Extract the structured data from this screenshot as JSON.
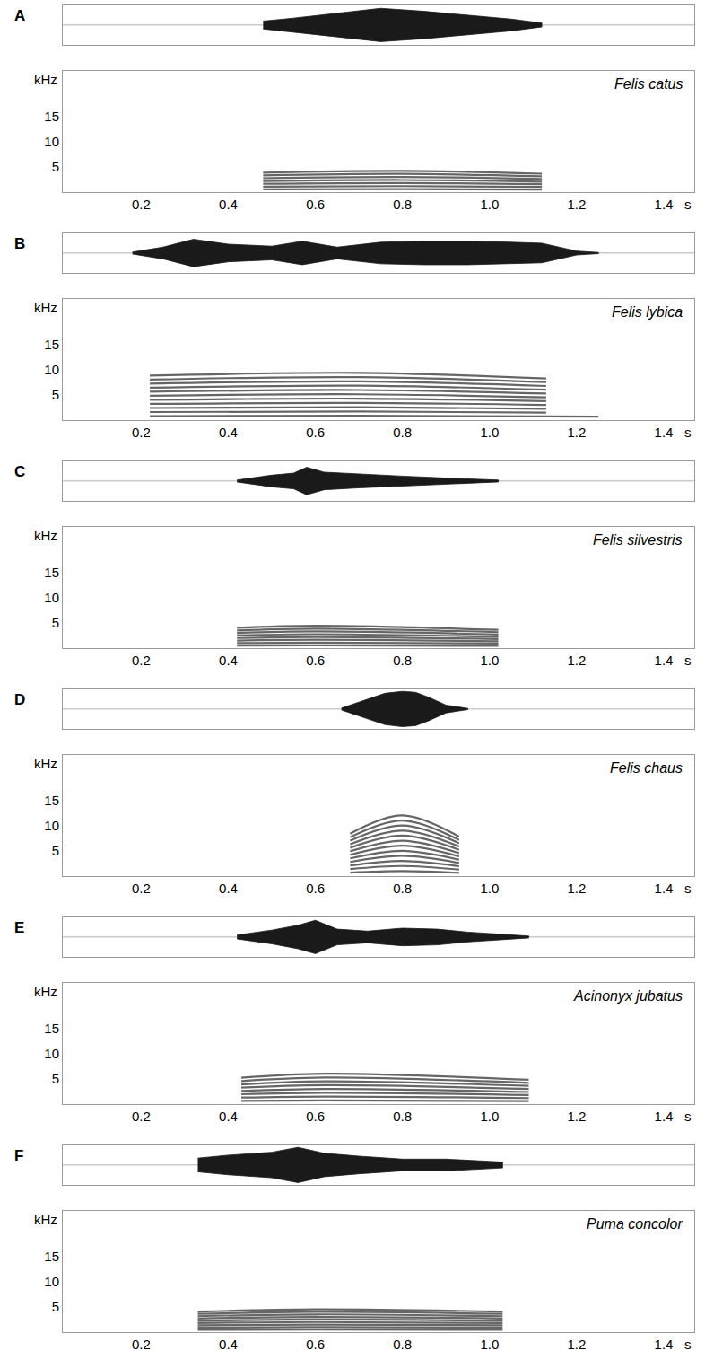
{
  "chart_data": [
    {
      "type": "line",
      "panel": "A",
      "title": "Felis catus",
      "x_label": "s",
      "y_label": "kHz",
      "xlim": [
        0.02,
        1.47
      ],
      "xticks": [
        0.2,
        0.4,
        0.6,
        0.8,
        {
          "value": 1,
          "label": "1.0"
        },
        1.2,
        1.4
      ],
      "ylim": [
        0,
        24
      ],
      "yticks": [
        5,
        10,
        15
      ],
      "color": "#333333",
      "waveform": {
        "type": "area",
        "color": "#1a1a1a",
        "ylim": [
          -1,
          1
        ],
        "tick_labels": false,
        "x": [
          0.48,
          0.55,
          0.65,
          0.75,
          0.85,
          0.95,
          1.05,
          1.12
        ],
        "values": [
          0.2,
          0.35,
          0.6,
          0.85,
          0.7,
          0.5,
          0.3,
          0.1
        ]
      },
      "series": [
        {
          "x": [
            0.48,
            0.8,
            1.12
          ],
          "values": [
            0.55,
            0.6,
            0.52
          ]
        },
        {
          "x": [
            0.48,
            0.8,
            1.12
          ],
          "values": [
            1.1,
            1.2,
            1.04
          ]
        },
        {
          "x": [
            0.48,
            0.8,
            1.12
          ],
          "values": [
            1.65,
            1.8,
            1.56
          ]
        },
        {
          "x": [
            0.48,
            0.8,
            1.12
          ],
          "values": [
            2.2,
            2.4,
            2.08
          ]
        },
        {
          "x": [
            0.48,
            0.8,
            1.12
          ],
          "values": [
            2.75,
            3.0,
            2.6
          ]
        },
        {
          "x": [
            0.48,
            0.8,
            1.12
          ],
          "values": [
            3.3,
            3.6,
            3.12
          ]
        },
        {
          "x": [
            0.48,
            0.8,
            1.12
          ],
          "values": [
            3.85,
            4.2,
            3.64
          ]
        }
      ]
    },
    {
      "type": "line",
      "panel": "B",
      "title": "Felis lybica",
      "x_label": "s",
      "y_label": "kHz",
      "xlim": [
        0.02,
        1.47
      ],
      "xticks": [
        0.2,
        0.4,
        0.6,
        0.8,
        {
          "value": 1,
          "label": "1.0"
        },
        1.2,
        1.4
      ],
      "ylim": [
        0,
        24
      ],
      "yticks": [
        5,
        10,
        15
      ],
      "color": "#333333",
      "waveform": {
        "type": "area",
        "color": "#1a1a1a",
        "ylim": [
          -1,
          1
        ],
        "tick_labels": false,
        "x": [
          0.18,
          0.25,
          0.32,
          0.4,
          0.5,
          0.57,
          0.65,
          0.75,
          0.85,
          0.95,
          1.05,
          1.12,
          1.2,
          1.25
        ],
        "values": [
          0.05,
          0.3,
          0.7,
          0.45,
          0.35,
          0.6,
          0.3,
          0.55,
          0.6,
          0.6,
          0.55,
          0.5,
          0.1,
          0.03
        ]
      },
      "series": [
        {
          "x": [
            0.22,
            0.7,
            1.13
          ],
          "values": [
            0.8,
            0.85,
            0.75
          ]
        },
        {
          "x": [
            0.22,
            0.7,
            1.13
          ],
          "values": [
            1.6,
            1.7,
            1.5
          ]
        },
        {
          "x": [
            0.22,
            0.7,
            1.13
          ],
          "values": [
            2.4,
            2.55,
            2.25
          ]
        },
        {
          "x": [
            0.22,
            0.7,
            1.13
          ],
          "values": [
            3.2,
            3.4,
            3.0
          ]
        },
        {
          "x": [
            0.22,
            0.7,
            1.13
          ],
          "values": [
            4.0,
            4.25,
            3.75
          ]
        },
        {
          "x": [
            0.22,
            0.7,
            1.13
          ],
          "values": [
            4.8,
            5.1,
            4.5
          ]
        },
        {
          "x": [
            0.22,
            0.7,
            1.13
          ],
          "values": [
            5.6,
            5.95,
            5.25
          ]
        },
        {
          "x": [
            0.22,
            0.7,
            1.13
          ],
          "values": [
            6.4,
            6.8,
            6.0
          ]
        },
        {
          "x": [
            0.22,
            0.7,
            1.13
          ],
          "values": [
            7.2,
            7.65,
            6.75
          ]
        },
        {
          "x": [
            0.22,
            0.7,
            1.13
          ],
          "values": [
            8.0,
            8.5,
            7.5
          ]
        },
        {
          "x": [
            0.22,
            0.7,
            1.13
          ],
          "values": [
            8.8,
            9.35,
            8.25
          ]
        },
        {
          "x": [
            1.13,
            1.25
          ],
          "values": [
            0.75,
            0.7
          ]
        }
      ]
    },
    {
      "type": "line",
      "panel": "C",
      "title": "Felis silvestris",
      "x_label": "s",
      "y_label": "kHz",
      "xlim": [
        0.02,
        1.47
      ],
      "xticks": [
        0.2,
        0.4,
        0.6,
        0.8,
        {
          "value": 1,
          "label": "1.0"
        },
        1.2,
        1.4
      ],
      "ylim": [
        0,
        24
      ],
      "yticks": [
        5,
        10,
        15
      ],
      "color": "#333333",
      "waveform": {
        "type": "area",
        "color": "#1a1a1a",
        "ylim": [
          -1,
          1
        ],
        "tick_labels": false,
        "x": [
          0.42,
          0.5,
          0.55,
          0.58,
          0.62,
          0.7,
          0.8,
          0.9,
          1.02
        ],
        "values": [
          0.05,
          0.3,
          0.4,
          0.7,
          0.45,
          0.35,
          0.25,
          0.15,
          0.05
        ]
      },
      "series": [
        {
          "x": [
            0.42,
            0.6,
            1.02
          ],
          "values": [
            0.5,
            0.55,
            0.45
          ]
        },
        {
          "x": [
            0.42,
            0.6,
            1.02
          ],
          "values": [
            1.0,
            1.1,
            0.9
          ]
        },
        {
          "x": [
            0.42,
            0.6,
            1.02
          ],
          "values": [
            1.5,
            1.65,
            1.35
          ]
        },
        {
          "x": [
            0.42,
            0.6,
            1.02
          ],
          "values": [
            2.0,
            2.2,
            1.8
          ]
        },
        {
          "x": [
            0.42,
            0.6,
            1.02
          ],
          "values": [
            2.5,
            2.75,
            2.25
          ]
        },
        {
          "x": [
            0.42,
            0.6,
            1.02
          ],
          "values": [
            3.0,
            3.3,
            2.7
          ]
        },
        {
          "x": [
            0.42,
            0.6,
            1.02
          ],
          "values": [
            3.5,
            3.85,
            3.15
          ]
        },
        {
          "x": [
            0.42,
            0.6,
            1.02
          ],
          "values": [
            4.0,
            4.4,
            3.6
          ]
        }
      ]
    },
    {
      "type": "line",
      "panel": "D",
      "title": "Felis chaus",
      "x_label": "s",
      "y_label": "kHz",
      "xlim": [
        0.02,
        1.47
      ],
      "xticks": [
        0.2,
        0.4,
        0.6,
        0.8,
        {
          "value": 1,
          "label": "1.0"
        },
        1.2,
        1.4
      ],
      "ylim": [
        0,
        24
      ],
      "yticks": [
        5,
        10,
        15
      ],
      "color": "#333333",
      "waveform": {
        "type": "area",
        "color": "#1a1a1a",
        "ylim": [
          -1,
          1
        ],
        "tick_labels": false,
        "x": [
          0.66,
          0.72,
          0.76,
          0.8,
          0.83,
          0.86,
          0.9,
          0.95
        ],
        "values": [
          0.05,
          0.5,
          0.8,
          0.9,
          0.85,
          0.6,
          0.2,
          0.03
        ]
      },
      "series": [
        {
          "x": [
            0.68,
            0.8,
            0.93
          ],
          "values": [
            0.7,
            1,
            0.65
          ]
        },
        {
          "x": [
            0.68,
            0.8,
            0.93
          ],
          "values": [
            1.4,
            2,
            1.3
          ]
        },
        {
          "x": [
            0.68,
            0.8,
            0.93
          ],
          "values": [
            2.1,
            3,
            1.95
          ]
        },
        {
          "x": [
            0.68,
            0.8,
            0.93
          ],
          "values": [
            2.8,
            4,
            2.6
          ]
        },
        {
          "x": [
            0.68,
            0.8,
            0.93
          ],
          "values": [
            3.5,
            5,
            3.25
          ]
        },
        {
          "x": [
            0.68,
            0.8,
            0.93
          ],
          "values": [
            4.2,
            6,
            3.9
          ]
        },
        {
          "x": [
            0.68,
            0.8,
            0.93
          ],
          "values": [
            4.9,
            7,
            4.55
          ]
        },
        {
          "x": [
            0.68,
            0.8,
            0.93
          ],
          "values": [
            5.6,
            8,
            5.2
          ]
        },
        {
          "x": [
            0.68,
            0.8,
            0.93
          ],
          "values": [
            6.3,
            9,
            5.85
          ]
        },
        {
          "x": [
            0.68,
            0.8,
            0.93
          ],
          "values": [
            7,
            10,
            6.5
          ]
        },
        {
          "x": [
            0.68,
            0.8,
            0.93
          ],
          "values": [
            7.7,
            11,
            7.15
          ]
        },
        {
          "x": [
            0.68,
            0.8,
            0.93
          ],
          "values": [
            8.4,
            12,
            7.8
          ]
        }
      ]
    },
    {
      "type": "line",
      "panel": "E",
      "title": "Acinonyx jubatus",
      "x_label": "s",
      "y_label": "kHz",
      "xlim": [
        0.02,
        1.47
      ],
      "xticks": [
        0.2,
        0.4,
        0.6,
        0.8,
        {
          "value": 1,
          "label": "1.0"
        },
        1.2,
        1.4
      ],
      "ylim": [
        0,
        24
      ],
      "yticks": [
        5,
        10,
        15
      ],
      "color": "#333333",
      "waveform": {
        "type": "area",
        "color": "#1a1a1a",
        "ylim": [
          -1,
          1
        ],
        "tick_labels": false,
        "x": [
          0.42,
          0.5,
          0.56,
          0.6,
          0.65,
          0.72,
          0.8,
          0.88,
          0.95,
          1.02,
          1.09
        ],
        "values": [
          0.1,
          0.35,
          0.6,
          0.85,
          0.4,
          0.3,
          0.45,
          0.4,
          0.25,
          0.15,
          0.05
        ]
      },
      "series": [
        {
          "x": [
            0.43,
            0.62,
            1.09
          ],
          "values": [
            0.65,
            0.75,
            0.6
          ]
        },
        {
          "x": [
            0.43,
            0.62,
            1.09
          ],
          "values": [
            1.3,
            1.5,
            1.2
          ]
        },
        {
          "x": [
            0.43,
            0.62,
            1.09
          ],
          "values": [
            1.95,
            2.25,
            1.8
          ]
        },
        {
          "x": [
            0.43,
            0.62,
            1.09
          ],
          "values": [
            2.6,
            3.0,
            2.4
          ]
        },
        {
          "x": [
            0.43,
            0.62,
            1.09
          ],
          "values": [
            3.25,
            3.75,
            3.0
          ]
        },
        {
          "x": [
            0.43,
            0.62,
            1.09
          ],
          "values": [
            3.9,
            4.5,
            3.6
          ]
        },
        {
          "x": [
            0.43,
            0.62,
            1.09
          ],
          "values": [
            4.55,
            5.25,
            4.2
          ]
        },
        {
          "x": [
            0.43,
            0.62,
            1.09
          ],
          "values": [
            5.2,
            6.0,
            4.8
          ]
        }
      ]
    },
    {
      "type": "line",
      "panel": "F",
      "title": "Puma concolor",
      "x_label": "s",
      "y_label": "kHz",
      "xlim": [
        0.02,
        1.47
      ],
      "xticks": [
        0.2,
        0.4,
        0.6,
        0.8,
        {
          "value": 1,
          "label": "1.0"
        },
        1.2,
        1.4
      ],
      "ylim": [
        0,
        24
      ],
      "yticks": [
        5,
        10,
        15
      ],
      "color": "#333333",
      "waveform": {
        "type": "area",
        "color": "#1a1a1a",
        "ylim": [
          -1,
          1
        ],
        "tick_labels": false,
        "x": [
          0.33,
          0.4,
          0.5,
          0.56,
          0.62,
          0.7,
          0.8,
          0.9,
          1.03
        ],
        "values": [
          0.35,
          0.5,
          0.65,
          0.9,
          0.6,
          0.45,
          0.3,
          0.3,
          0.15
        ]
      },
      "series": [
        {
          "x": [
            0.33,
            0.6,
            1.03
          ],
          "values": [
            0.45,
            0.5,
            0.45
          ]
        },
        {
          "x": [
            0.33,
            0.6,
            1.03
          ],
          "values": [
            0.9,
            1,
            0.9
          ]
        },
        {
          "x": [
            0.33,
            0.6,
            1.03
          ],
          "values": [
            1.35,
            1.5,
            1.35
          ]
        },
        {
          "x": [
            0.33,
            0.6,
            1.03
          ],
          "values": [
            1.8,
            2,
            1.8
          ]
        },
        {
          "x": [
            0.33,
            0.6,
            1.03
          ],
          "values": [
            2.25,
            2.5,
            2.25
          ]
        },
        {
          "x": [
            0.33,
            0.6,
            1.03
          ],
          "values": [
            2.7,
            3,
            2.7
          ]
        },
        {
          "x": [
            0.33,
            0.6,
            1.03
          ],
          "values": [
            3.15,
            3.5,
            3.15
          ]
        },
        {
          "x": [
            0.33,
            0.6,
            1.03
          ],
          "values": [
            3.6,
            4,
            3.6
          ]
        },
        {
          "x": [
            0.33,
            0.6,
            1.03
          ],
          "values": [
            4.05,
            4.5,
            4.05
          ]
        }
      ]
    }
  ]
}
